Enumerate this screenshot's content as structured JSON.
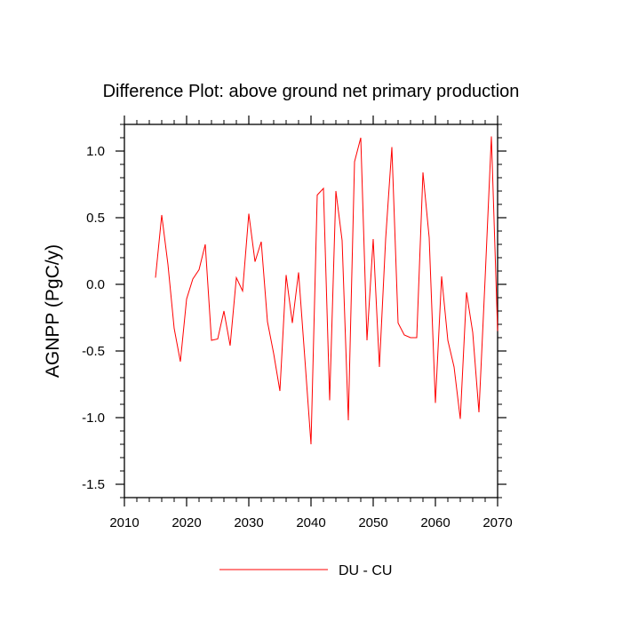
{
  "chart_data": {
    "type": "line",
    "title": "Difference Plot: above ground net primary production",
    "ylabel": "AGNPP  (PgC/y)",
    "xlabel": "",
    "xlim": [
      2010,
      2070
    ],
    "ylim": [
      -1.6,
      1.2
    ],
    "x_ticks": [
      2010,
      2020,
      2030,
      2040,
      2050,
      2060,
      2070
    ],
    "x_tick_labels": [
      "2010",
      "2020",
      "2030",
      "2040",
      "2050",
      "2060",
      "2070"
    ],
    "y_ticks": [
      -1.5,
      -1.0,
      -0.5,
      0.0,
      0.5,
      1.0
    ],
    "y_tick_labels": [
      "-1.5",
      "-1.0",
      "-0.5",
      "0.0",
      "0.5",
      "1.0"
    ],
    "grid": false,
    "legend_position": "bottom-center",
    "series": [
      {
        "name": "DU - CU",
        "color": "#ff0000",
        "x": [
          2015,
          2016,
          2017,
          2018,
          2019,
          2020,
          2021,
          2022,
          2023,
          2024,
          2025,
          2026,
          2027,
          2028,
          2029,
          2030,
          2031,
          2032,
          2033,
          2034,
          2035,
          2036,
          2037,
          2038,
          2039,
          2040,
          2041,
          2042,
          2043,
          2044,
          2045,
          2046,
          2047,
          2048,
          2049,
          2050,
          2051,
          2052,
          2053,
          2054,
          2055,
          2056,
          2057,
          2058,
          2059,
          2060,
          2061,
          2062,
          2063,
          2064,
          2065,
          2066,
          2067,
          2068,
          2069,
          2070
        ],
        "values": [
          0.05,
          0.52,
          0.15,
          -0.33,
          -0.58,
          -0.11,
          0.04,
          0.11,
          0.3,
          -0.42,
          -0.41,
          -0.2,
          -0.46,
          0.05,
          -0.05,
          0.53,
          0.17,
          0.32,
          -0.28,
          -0.52,
          -0.8,
          0.07,
          -0.29,
          0.09,
          -0.55,
          -1.2,
          0.67,
          0.72,
          -0.87,
          0.7,
          0.33,
          -1.02,
          0.92,
          1.1,
          -0.42,
          0.34,
          -0.62,
          0.34,
          1.03,
          -0.29,
          -0.38,
          -0.4,
          -0.4,
          0.84,
          0.35,
          -0.89,
          0.06,
          -0.42,
          -0.62,
          -1.01,
          -0.06,
          -0.36,
          -0.96,
          0.05,
          1.11,
          -0.35
        ]
      }
    ]
  }
}
